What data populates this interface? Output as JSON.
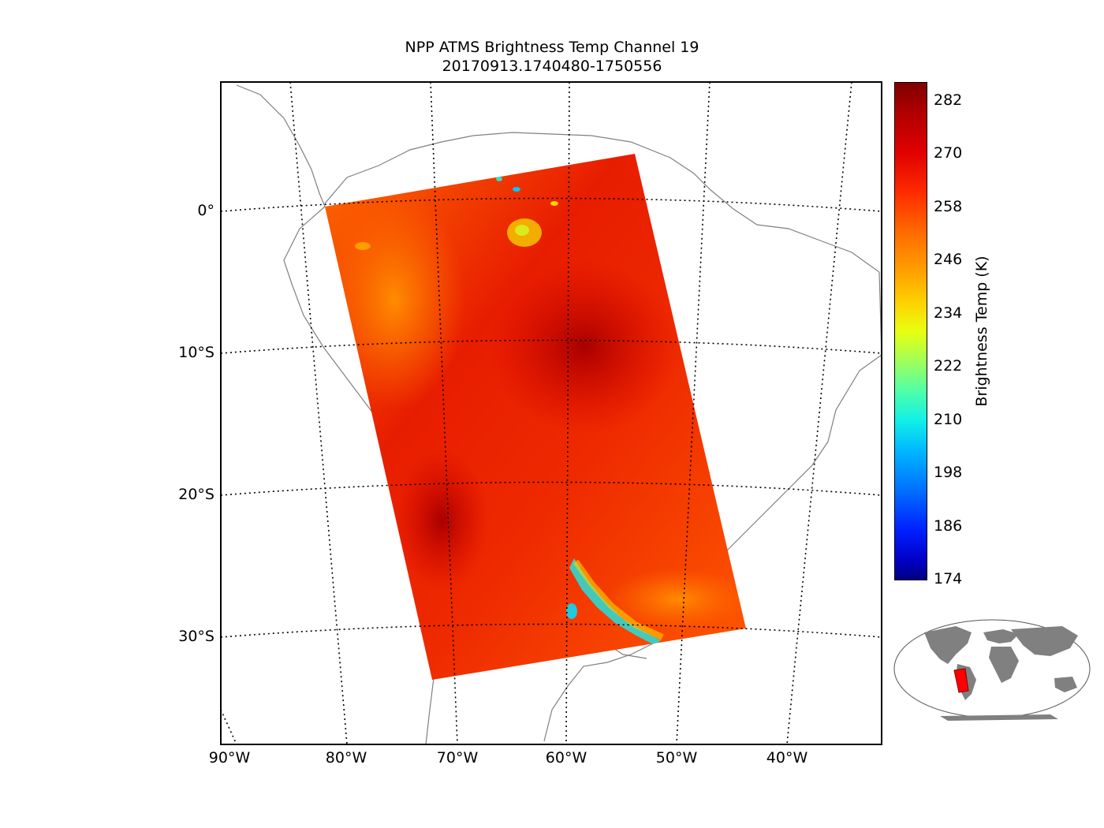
{
  "title": {
    "line1": "NPP ATMS Brightness Temp Channel 19",
    "line2": "20170913.1740480-1750556"
  },
  "map": {
    "projection": "oblique conic",
    "coastline_color": "#808080",
    "gridline_style": "dotted black",
    "lat_labels": [
      "0°",
      "10°S",
      "20°S",
      "30°S"
    ],
    "lon_labels": [
      "90°W",
      "80°W",
      "70°W",
      "60°W",
      "50°W",
      "40°W"
    ],
    "swath": {
      "corners": [
        "82°W 0°",
        "54°W 4°N",
        "44°W 29°S",
        "72°W 33°S"
      ],
      "dominant_range_K": "258-282",
      "features": [
        "warmest (~282 K) near 57°W 10°S and 71°W 22°S",
        "cool band (~210-230 K) along Rio de la Plata / Uruguay coast near 55°W 30°S",
        "cool spots (~220-250 K) near 63°W 2°N"
      ]
    }
  },
  "colorbar": {
    "label": "Brightness Temp (K)",
    "min": 174,
    "max": 286,
    "ticks": [
      "282",
      "270",
      "258",
      "246",
      "234",
      "222",
      "210",
      "198",
      "186",
      "174"
    ],
    "colormap": "jet"
  },
  "inset": {
    "name": "global locator",
    "land_color": "#808080",
    "highlight_color": "#ff0000"
  }
}
